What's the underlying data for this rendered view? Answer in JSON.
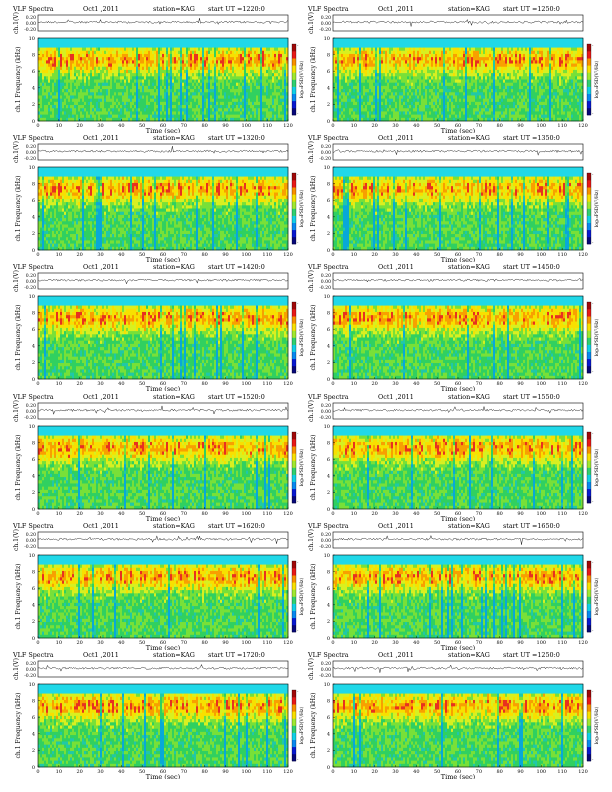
{
  "header_labels": {
    "title": "VLF Spectra",
    "station": "station=KAG",
    "start_prefix": "start  UT ="
  },
  "colorbar_label": "log₁₀PSD(V²/Hz)",
  "colorbar_ticks": [
    "-",
    "-"
  ],
  "colors": {
    "background": "#31b0c8",
    "band_top": "#20d8e8",
    "palette": [
      "#08a8d8",
      "#20c8a8",
      "#30d060",
      "#78e038",
      "#d8f020",
      "#f8e000",
      "#f8a000",
      "#e83020"
    ]
  },
  "panels": [
    {
      "date": "Oct1 ,2011",
      "start": "1220:0"
    },
    {
      "date": "Oct1 ,2011",
      "start": "1250:0"
    },
    {
      "date": "Oct1 ,2011",
      "start": "1320:0"
    },
    {
      "date": "Oct1 ,2011",
      "start": "1350:0"
    },
    {
      "date": "Oct1 ,2011",
      "start": "1420:0"
    },
    {
      "date": "Oct1 ,2011",
      "start": "1450:0"
    },
    {
      "date": "Oct1 ,2011",
      "start": "1520:0"
    },
    {
      "date": "Oct1 ,2011",
      "start": "1550:0"
    },
    {
      "date": "Oct1 ,2011",
      "start": "1620:0"
    },
    {
      "date": "Oct1 ,2011",
      "start": "1650:0"
    },
    {
      "date": "Oct1 ,2011",
      "start": "1720:0"
    },
    {
      "date": "Oct1 ,2011",
      "start": "1250:0"
    }
  ],
  "chart_data": {
    "type": "heatmap",
    "subplot_grid": [
      6,
      2
    ],
    "waveform_ylabel": "ch.1(V)",
    "waveform_yticks": [
      "0.20",
      "0.00",
      "-0.20"
    ],
    "waveform_ylim": [
      -0.2,
      0.2
    ],
    "spectrogram_ylabel": "ch.1 Frequency (kHz)",
    "spectrogram_yticks": [
      0,
      2,
      4,
      6,
      8,
      10
    ],
    "ylim": [
      0,
      10
    ],
    "xlabel": "Time (sec)",
    "xticks": [
      0,
      10,
      20,
      30,
      40,
      50,
      60,
      70,
      80,
      90,
      100,
      110,
      120
    ],
    "xlim": [
      0,
      120
    ],
    "colorbar_label": "log10PSD(V^2/Hz)"
  }
}
